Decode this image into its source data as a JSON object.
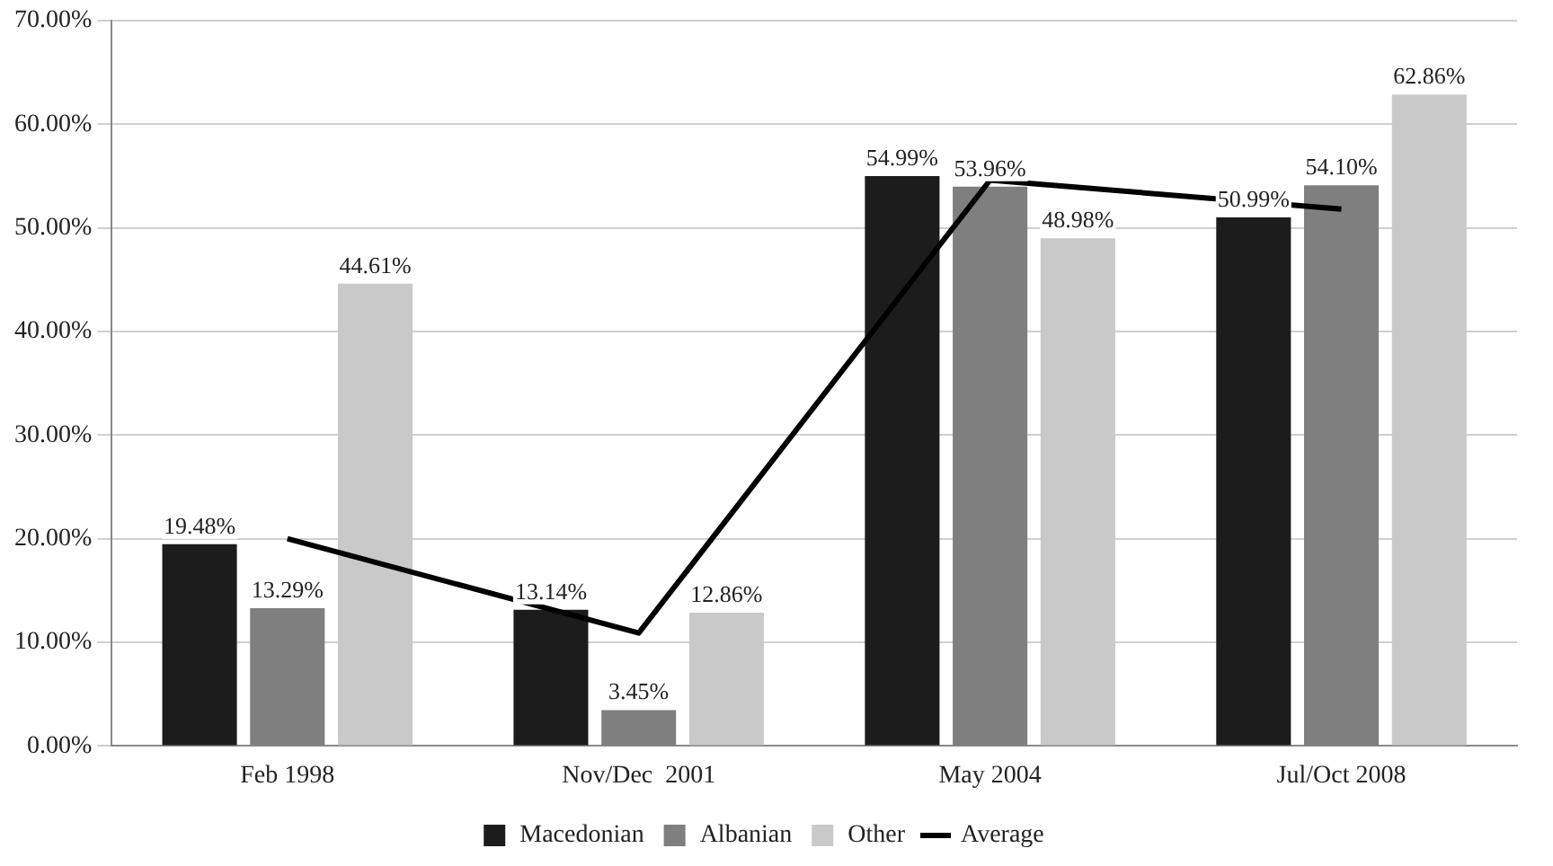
{
  "chart_data": {
    "type": "bar",
    "categories": [
      "Feb 1998",
      "Nov/Dec  2001",
      "May 2004",
      "Jul/Oct 2008"
    ],
    "series": [
      {
        "name": "Macedonian",
        "color": "#1c1c1c",
        "values": [
          19.48,
          13.14,
          54.99,
          50.99
        ],
        "value_labels": [
          "19.48%",
          "13.14%",
          "54.99%",
          "50.99%"
        ]
      },
      {
        "name": "Albanian",
        "color": "#7f7f7f",
        "values": [
          13.29,
          3.45,
          53.96,
          54.1
        ],
        "value_labels": [
          "13.29%",
          "3.45%",
          "53.96%",
          "54.10%"
        ]
      },
      {
        "name": "Other",
        "color": "#c9c9c9",
        "values": [
          44.61,
          12.86,
          48.98,
          62.86
        ],
        "value_labels": [
          "44.61%",
          "12.86%",
          "48.98%",
          "62.86%"
        ]
      },
      {
        "name": "Average",
        "type": "line",
        "color": "#000000",
        "values": [
          20.0,
          10.9,
          54.6,
          51.8
        ]
      }
    ],
    "ylim": [
      0,
      70
    ],
    "yticks": [
      {
        "value": 0,
        "label": "0.00%"
      },
      {
        "value": 10,
        "label": "10.00%"
      },
      {
        "value": 20,
        "label": "20.00%"
      },
      {
        "value": 30,
        "label": "30.00%"
      },
      {
        "value": 40,
        "label": "40.00%"
      },
      {
        "value": 50,
        "label": "50.00%"
      },
      {
        "value": 60,
        "label": "60.00%"
      },
      {
        "value": 70,
        "label": "70.00%"
      }
    ],
    "grid": "y",
    "legend": "bottom",
    "marker": "none",
    "line_style": "solid"
  }
}
